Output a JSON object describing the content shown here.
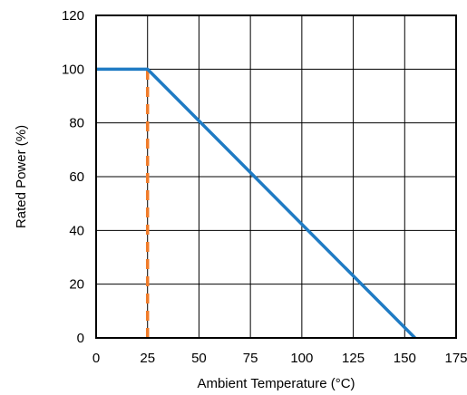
{
  "chart_data": {
    "type": "line",
    "title": "",
    "xlabel": "Ambient Temperature (°C)",
    "ylabel": "Rated Power (%)",
    "xlim": [
      0,
      175
    ],
    "ylim": [
      0,
      120
    ],
    "xticks": [
      0,
      25,
      50,
      75,
      100,
      125,
      150,
      175
    ],
    "yticks": [
      0,
      20,
      40,
      60,
      80,
      100,
      120
    ],
    "grid": true,
    "legend": "none",
    "series": [
      {
        "style": "solid",
        "color": "#1f7bc4",
        "x": [
          0,
          25,
          155
        ],
        "y": [
          100,
          100,
          0
        ]
      },
      {
        "style": "dashed",
        "color": "#f07c2a",
        "x": [
          25,
          25
        ],
        "y": [
          0,
          100
        ]
      }
    ]
  }
}
